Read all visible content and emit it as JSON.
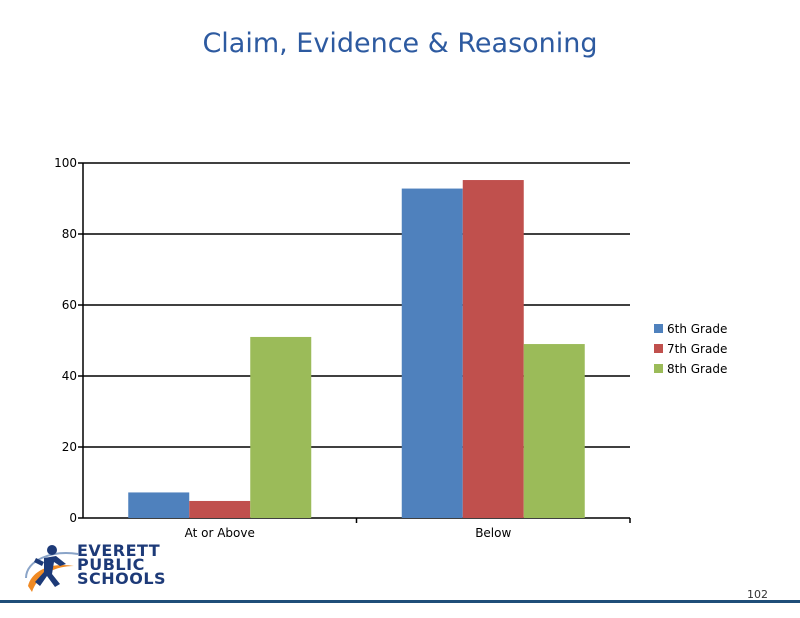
{
  "slide": {
    "title": "Claim, Evidence & Reasoning",
    "page_number": "102",
    "logo": {
      "line1": "EVERETT",
      "line2": "PUBLIC",
      "line3": "SCHOOLS"
    }
  },
  "chart_data": {
    "type": "bar",
    "categories": [
      "At or Above",
      "Below"
    ],
    "series": [
      {
        "name": "6th Grade",
        "color": "#4f81bd",
        "values": [
          7.2,
          92.8
        ]
      },
      {
        "name": "7th Grade",
        "color": "#c0504d",
        "values": [
          4.8,
          95.2
        ]
      },
      {
        "name": "8th Grade",
        "color": "#9bbb59",
        "values": [
          51,
          49
        ]
      }
    ],
    "ylim": [
      0,
      100
    ],
    "yticks": [
      0,
      20,
      40,
      60,
      80,
      100
    ],
    "grid": true,
    "legend": "right"
  },
  "colors": {
    "title": "#2d5aa0",
    "footer_rule": "#1f4e79"
  }
}
